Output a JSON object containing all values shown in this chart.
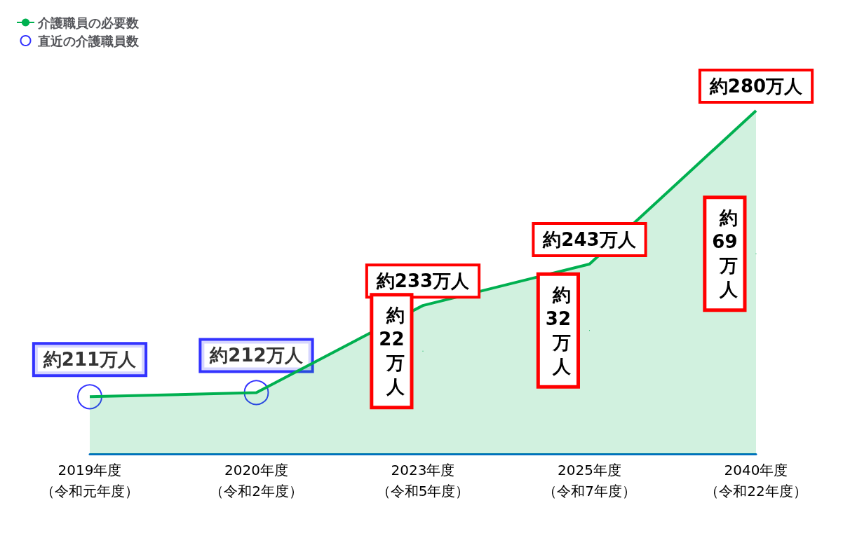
{
  "chart_data": {
    "type": "area",
    "categories": [
      "2019年度（令和元年度）",
      "2020年度（令和2年度）",
      "2023年度（令和5年度）",
      "2025年度（令和7年度）",
      "2040年度（令和22年度）"
    ],
    "series": [
      {
        "name": "介護職員の必要数",
        "color": "#00b050",
        "values": [
          211,
          212,
          233,
          243,
          280
        ],
        "value_labels": [
          null,
          null,
          "約233万人",
          "約243万人",
          "約280万人"
        ]
      },
      {
        "name": "直近の介護職員数",
        "type": "scatter",
        "marker": "circle",
        "color": "#0000ff",
        "values": [
          211,
          212,
          null,
          null,
          null
        ],
        "value_labels": [
          "約211万人",
          "約212万人",
          null,
          null,
          null
        ]
      }
    ],
    "annotations": [
      {
        "text": "約22万人",
        "x": "2023年度（令和5年度）",
        "y": 222
      },
      {
        "text": "約32万人",
        "x": "2025年度（令和7年度）",
        "y": 227
      },
      {
        "text": "約69万人",
        "x": "2040年度（令和22年度）",
        "y": 245.5
      }
    ],
    "legend": "top left",
    "grid": false
  }
}
